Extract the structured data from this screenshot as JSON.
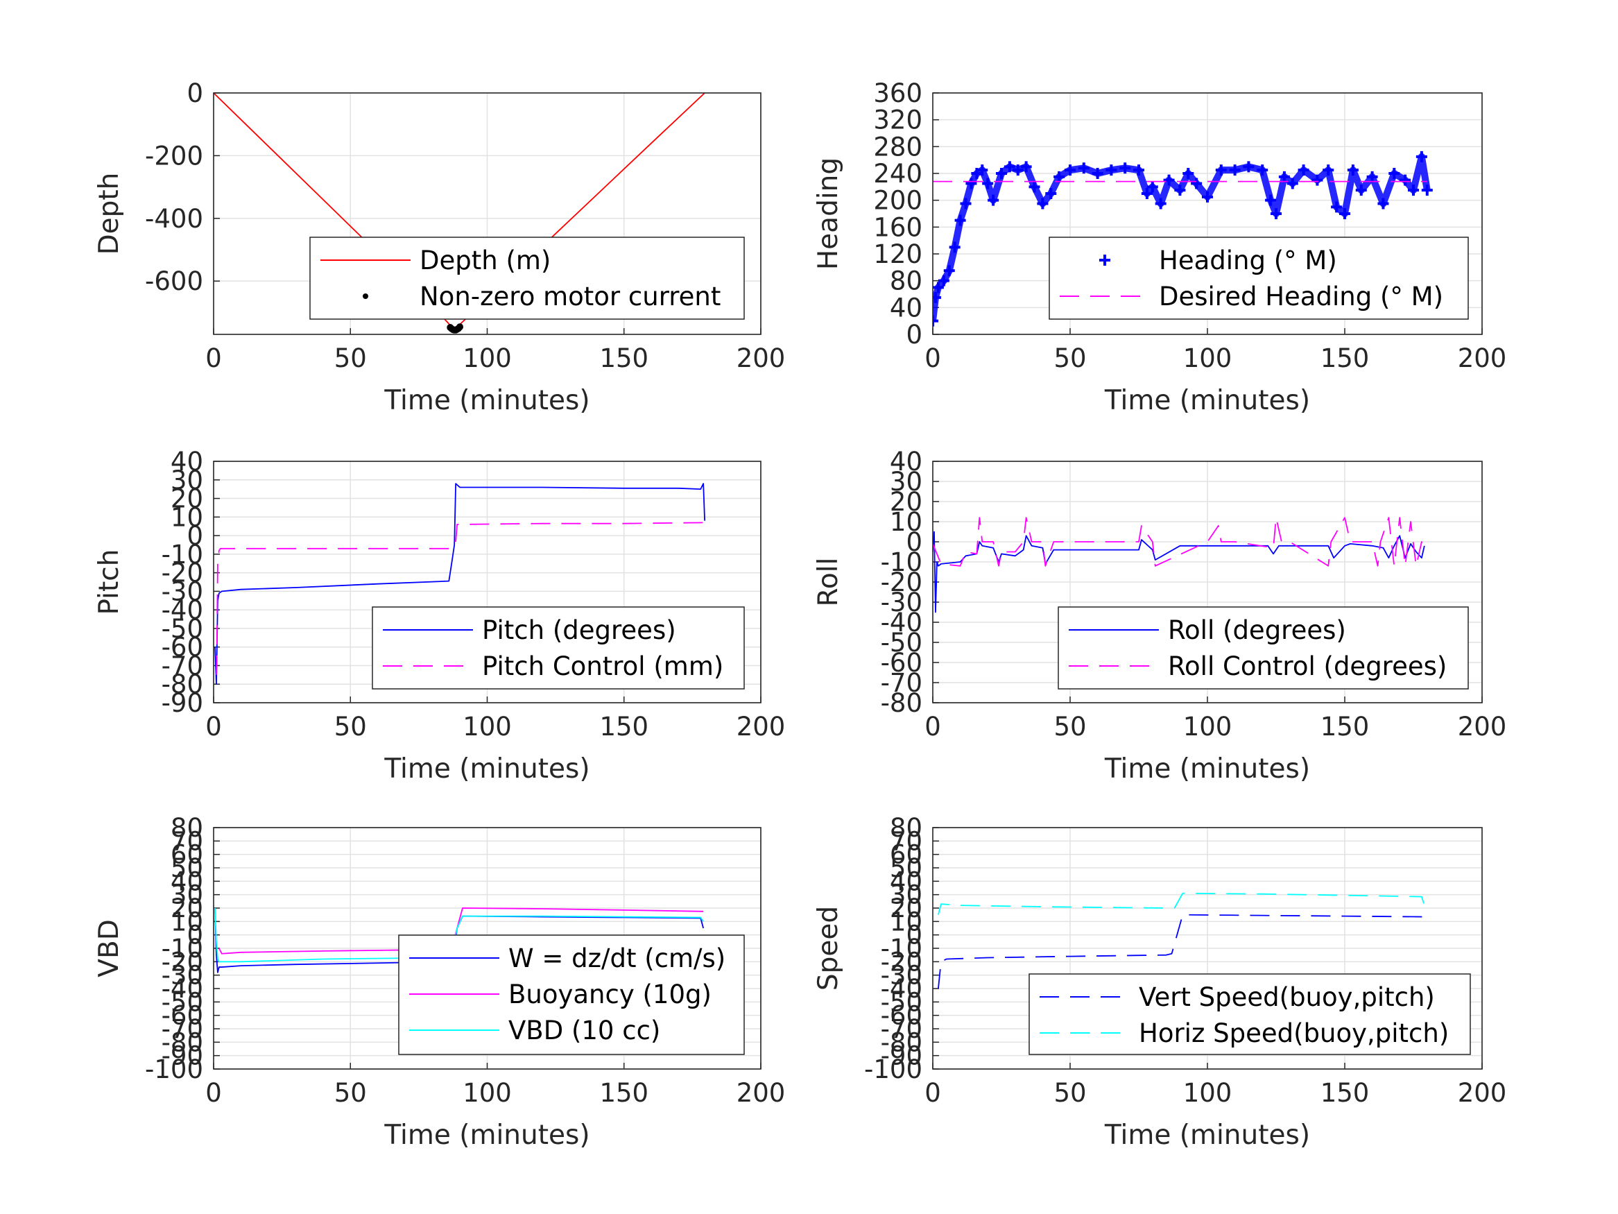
{
  "colors": {
    "red": "#ff0000",
    "blue": "#0000ff",
    "magenta": "#ff00ff",
    "cyan": "#00ffff",
    "black": "#000000",
    "grid": "#e2e2e2",
    "axis": "#262626"
  },
  "chart_data": [
    {
      "id": "depth",
      "type": "line",
      "xlabel": "Time (minutes)",
      "ylabel": "Depth",
      "xlim": [
        0,
        200
      ],
      "ylim": [
        -770,
        0
      ],
      "xticks": [
        "0",
        "50",
        "100",
        "150",
        "200"
      ],
      "yticks": [
        "0",
        "-200",
        "-400",
        "-600"
      ],
      "legend_position": "bottom-right",
      "grid": true,
      "series": [
        {
          "name": "Depth (m)",
          "style": "solid",
          "color": "red",
          "x": [
            0,
            20,
            40,
            60,
            80,
            88,
            100,
            120,
            140,
            160,
            179.5
          ],
          "y": [
            0,
            -170,
            -340,
            -510,
            -680,
            -755,
            -655,
            -490,
            -325,
            -160,
            0
          ]
        },
        {
          "name": "Non-zero motor current",
          "style": "dots",
          "color": "black",
          "x": [
            86.5,
            87,
            87.5,
            88,
            88.5,
            89,
            89.5,
            90
          ],
          "y": [
            -748,
            -752,
            -755,
            -756,
            -756,
            -754,
            -751,
            -746
          ]
        }
      ]
    },
    {
      "id": "heading",
      "type": "scatter",
      "xlabel": "Time (minutes)",
      "ylabel": "Heading",
      "xlim": [
        0,
        200
      ],
      "ylim": [
        0,
        360
      ],
      "xticks": [
        "0",
        "50",
        "100",
        "150",
        "200"
      ],
      "yticks": [
        "0",
        "40",
        "80",
        "120",
        "160",
        "200",
        "240",
        "280",
        "320",
        "360"
      ],
      "legend_position": "bottom-right",
      "grid": true,
      "series": [
        {
          "name": "Heading (° M)",
          "style": "plus",
          "color": "blue",
          "x": [
            0,
            1,
            2,
            4,
            6,
            8,
            10,
            12,
            14,
            16,
            18,
            20,
            22,
            25,
            28,
            31,
            34,
            37,
            40,
            43,
            46,
            50,
            55,
            60,
            65,
            70,
            75,
            78,
            80,
            83,
            86,
            90,
            93,
            96,
            100,
            105,
            110,
            115,
            120,
            123,
            125,
            128,
            131,
            135,
            140,
            144,
            147,
            150,
            153,
            156,
            160,
            164,
            168,
            172,
            175,
            178,
            180
          ],
          "y": [
            20,
            55,
            70,
            80,
            95,
            130,
            170,
            195,
            225,
            240,
            245,
            225,
            200,
            240,
            250,
            245,
            250,
            220,
            195,
            210,
            235,
            245,
            248,
            240,
            245,
            248,
            245,
            210,
            220,
            195,
            230,
            215,
            240,
            225,
            205,
            245,
            245,
            250,
            245,
            200,
            180,
            235,
            225,
            245,
            230,
            245,
            190,
            180,
            245,
            215,
            235,
            195,
            240,
            230,
            215,
            265,
            215
          ]
        },
        {
          "name": "Desired Heading (° M)",
          "style": "dashed",
          "color": "magenta",
          "x": [
            0,
            180
          ],
          "y": [
            228,
            228
          ]
        }
      ]
    },
    {
      "id": "pitch",
      "type": "line",
      "xlabel": "Time (minutes)",
      "ylabel": "Pitch",
      "xlim": [
        0,
        200
      ],
      "ylim": [
        -90,
        40
      ],
      "xticks": [
        "0",
        "50",
        "100",
        "150",
        "200"
      ],
      "yticks": [
        "40",
        "30",
        "20",
        "10",
        "0",
        "-10",
        "-20",
        "-30",
        "-40",
        "-50",
        "-60",
        "-70",
        "-80",
        "-90"
      ],
      "legend_position": "bottom-right",
      "grid": true,
      "series": [
        {
          "name": "Pitch (degrees)",
          "style": "solid",
          "color": "blue",
          "x": [
            0.5,
            1,
            1.5,
            2,
            3,
            10,
            30,
            60,
            86,
            87,
            88,
            88.5,
            90,
            120,
            150,
            170,
            178,
            179,
            179.5
          ],
          "y": [
            -60,
            -80,
            -35,
            -31,
            -30,
            -29,
            -28,
            -26,
            -24.5,
            -15,
            -5,
            28,
            26,
            26,
            25.5,
            25.5,
            25,
            28,
            8
          ]
        },
        {
          "name": "Pitch Control (mm)",
          "style": "dashed",
          "color": "magenta",
          "x": [
            1,
            1.2,
            1.5,
            2,
            2.5,
            86,
            87,
            88.5,
            89,
            120,
            150,
            179.5
          ],
          "y": [
            -75,
            -60,
            -15,
            -8,
            -7,
            -7,
            -3,
            -3,
            6,
            6.5,
            6.5,
            7
          ]
        }
      ]
    },
    {
      "id": "roll",
      "type": "line",
      "xlabel": "Time (minutes)",
      "ylabel": "Roll",
      "xlim": [
        0,
        200
      ],
      "ylim": [
        -80,
        40
      ],
      "xticks": [
        "0",
        "50",
        "100",
        "150",
        "200"
      ],
      "yticks": [
        "40",
        "30",
        "20",
        "10",
        "0",
        "-10",
        "-20",
        "-30",
        "-40",
        "-50",
        "-60",
        "-70",
        "-80"
      ],
      "legend_position": "bottom-right",
      "grid": true,
      "series": [
        {
          "name": "Roll (degrees)",
          "style": "solid",
          "color": "blue",
          "x": [
            0,
            0.5,
            1,
            1.5,
            2,
            3,
            10,
            12,
            16,
            17,
            18,
            22,
            24,
            25,
            30,
            33,
            34,
            36,
            40,
            41,
            44,
            60,
            75,
            76,
            80,
            81,
            90,
            100,
            105,
            110,
            122,
            124,
            126,
            130,
            144,
            146,
            150,
            152,
            160,
            164,
            166,
            168,
            170,
            172,
            174,
            176,
            178,
            179
          ],
          "y": [
            -5,
            5,
            -35,
            -10,
            -12,
            -11,
            -10,
            -7,
            -6,
            0,
            -2,
            -3,
            -10,
            -6,
            -7,
            -4,
            3,
            -2,
            -3,
            -11,
            -4,
            -4,
            -4,
            1,
            -4,
            -9,
            -2,
            -2,
            -2,
            -2,
            -2,
            -6,
            -2,
            -2,
            -2,
            -8,
            -2,
            -1,
            -2,
            -3,
            -8,
            -2,
            3,
            -8,
            -1,
            -5,
            -8,
            -2
          ]
        },
        {
          "name": "Roll Control (degrees)",
          "style": "dashed",
          "color": "magenta",
          "x": [
            0,
            3,
            10,
            12,
            16,
            17,
            18,
            22,
            24,
            25,
            30,
            33,
            34,
            36,
            40,
            41,
            44,
            75,
            76,
            80,
            81,
            100,
            104,
            105,
            110,
            124,
            125,
            127,
            130,
            144,
            145,
            150,
            152,
            160,
            162,
            163,
            166,
            168,
            170,
            172,
            174,
            176,
            178,
            179
          ],
          "y": [
            -1,
            -11,
            -12,
            -5,
            -6,
            12,
            0,
            0,
            -12,
            -5,
            -5,
            0,
            12,
            0,
            0,
            -12,
            0,
            0,
            8,
            0,
            -12,
            0,
            8,
            0,
            0,
            -3,
            12,
            0,
            0,
            -12,
            0,
            12,
            0,
            0,
            -12,
            0,
            12,
            -12,
            12,
            -12,
            10,
            -12,
            0,
            -5
          ]
        }
      ]
    },
    {
      "id": "vbd",
      "type": "line",
      "xlabel": "Time (minutes)",
      "ylabel": "VBD",
      "xlim": [
        0,
        200
      ],
      "ylim": [
        -100,
        80
      ],
      "xticks": [
        "0",
        "50",
        "100",
        "150",
        "200"
      ],
      "yticks": [
        "80",
        "70",
        "60",
        "50",
        "40",
        "30",
        "20",
        "10",
        "0",
        "-10",
        "-20",
        "-30",
        "-40",
        "-50",
        "-60",
        "-70",
        "-80",
        "-90",
        "-100"
      ],
      "legend_position": "bottom-right",
      "grid": true,
      "series": [
        {
          "name": "W = dz/dt (cm/s)",
          "style": "solid",
          "color": "blue",
          "x": [
            0.5,
            1,
            1.5,
            2,
            3,
            10,
            30,
            60,
            85,
            87,
            88,
            89,
            91,
            120,
            150,
            178,
            179
          ],
          "y": [
            20,
            -15,
            -28,
            -24,
            -24,
            -23,
            -22,
            -21,
            -20,
            -18,
            -10,
            5,
            14,
            13.5,
            13,
            12.5,
            5
          ]
        },
        {
          "name": "Buoyancy (10g)",
          "style": "solid",
          "color": "magenta",
          "x": [
            2,
            3,
            10,
            40,
            80,
            85,
            87,
            91,
            120,
            150,
            179
          ],
          "y": [
            -10,
            -14,
            -13,
            -12,
            -11,
            -11,
            -10,
            20,
            19.5,
            18.5,
            17.5
          ]
        },
        {
          "name": "VBD (10 cc)",
          "style": "solid",
          "color": "cyan",
          "x": [
            0.5,
            1,
            1.5,
            2,
            3,
            10,
            40,
            85,
            87,
            89,
            91,
            120,
            150,
            178,
            179
          ],
          "y": [
            20,
            -5,
            -18,
            -20,
            -20,
            -20,
            -18,
            -17,
            -15,
            5,
            14,
            14,
            13.5,
            13,
            10
          ]
        }
      ]
    },
    {
      "id": "speed",
      "type": "line",
      "xlabel": "Time (minutes)",
      "ylabel": "Speed",
      "xlim": [
        0,
        200
      ],
      "ylim": [
        -100,
        80
      ],
      "xticks": [
        "0",
        "50",
        "100",
        "150",
        "200"
      ],
      "yticks": [
        "80",
        "70",
        "60",
        "50",
        "40",
        "30",
        "20",
        "10",
        "0",
        "-10",
        "-20",
        "-30",
        "-40",
        "-50",
        "-60",
        "-70",
        "-80",
        "-90",
        "-100"
      ],
      "legend_position": "bottom-right",
      "grid": true,
      "series": [
        {
          "name": "Vert Speed(buoy,pitch)",
          "style": "dashed",
          "color": "blue",
          "x": [
            2,
            3,
            5,
            20,
            50,
            85,
            87,
            91,
            120,
            150,
            178,
            179
          ],
          "y": [
            -40,
            -20,
            -18,
            -17,
            -16,
            -15,
            -14,
            15,
            14.5,
            14,
            13.5,
            13
          ]
        },
        {
          "name": "Horiz Speed(buoy,pitch)",
          "style": "dashed",
          "color": "cyan",
          "x": [
            2,
            3,
            10,
            40,
            85,
            87,
            88,
            91,
            120,
            150,
            178,
            179
          ],
          "y": [
            15,
            23,
            22,
            21,
            20,
            20,
            20,
            31,
            30.5,
            29.5,
            28.5,
            22
          ]
        }
      ]
    }
  ]
}
